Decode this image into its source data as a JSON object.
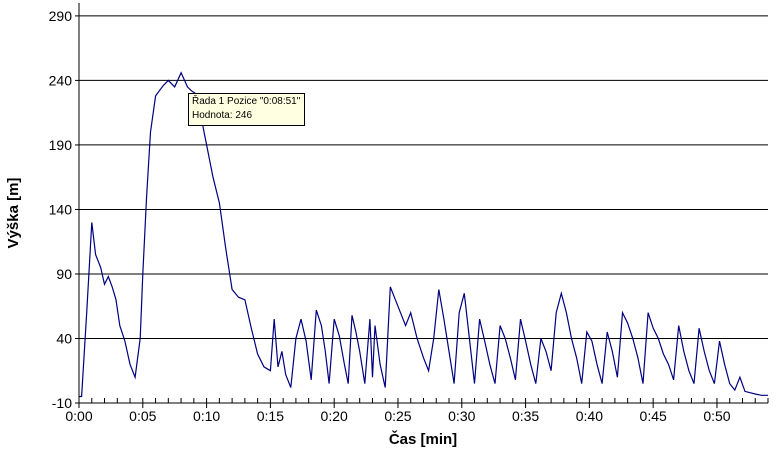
{
  "chart_data": {
    "type": "line",
    "xlabel": "Čas [min]",
    "ylabel": "Výška [m]",
    "xlim": [
      0,
      54
    ],
    "ylim": [
      -10,
      300
    ],
    "y_ticks": [
      "-10",
      "40",
      "90",
      "140",
      "190",
      "240",
      "290"
    ],
    "x_ticks": [
      "0:00",
      "0:05",
      "0:10",
      "0:15",
      "0:20",
      "0:25",
      "0:30",
      "0:35",
      "0:40",
      "0:45",
      "0:50"
    ],
    "grid": "horizontal",
    "line_color": "#000080",
    "series": [
      {
        "x": [
          0.0,
          0.2,
          0.6,
          1.0,
          1.3,
          1.7,
          2.0,
          2.3,
          2.6,
          2.9,
          3.2,
          3.6,
          4.0,
          4.4,
          4.8,
          5.0,
          5.3,
          5.6,
          6.0,
          6.3,
          6.6,
          7.0,
          7.5,
          8.0,
          8.5,
          8.8,
          9.1,
          9.5,
          10.0,
          10.5,
          11.0,
          11.5,
          12.0,
          12.5,
          13.0,
          13.5,
          14.0,
          14.5,
          15.0,
          15.3,
          15.6,
          15.9,
          16.2,
          16.6,
          17.0,
          17.4,
          17.8,
          18.2,
          18.6,
          19.0,
          19.3,
          19.6,
          20.0,
          20.4,
          20.8,
          21.1,
          21.4,
          21.7,
          22.0,
          22.4,
          22.8,
          23.0,
          23.2,
          23.6,
          24.0,
          24.4,
          24.8,
          25.2,
          25.6,
          26.0,
          26.5,
          27.0,
          27.4,
          27.8,
          28.2,
          28.6,
          29.0,
          29.4,
          29.8,
          30.2,
          30.6,
          31.0,
          31.4,
          31.8,
          32.2,
          32.6,
          33.0,
          33.4,
          33.8,
          34.2,
          34.6,
          35.0,
          35.4,
          35.8,
          36.2,
          36.6,
          37.0,
          37.4,
          37.8,
          38.2,
          38.6,
          39.0,
          39.4,
          39.8,
          40.2,
          40.6,
          41.0,
          41.4,
          41.8,
          42.2,
          42.6,
          43.0,
          43.4,
          43.8,
          44.2,
          44.6,
          45.0,
          45.4,
          45.8,
          46.2,
          46.6,
          47.0,
          47.4,
          47.8,
          48.2,
          48.6,
          49.0,
          49.4,
          49.8,
          50.2,
          50.6,
          51.0,
          51.4,
          51.8,
          52.2,
          52.6,
          53.0,
          53.5,
          54.0
        ],
        "y": [
          -5,
          -5,
          60,
          130,
          105,
          95,
          82,
          88,
          80,
          70,
          50,
          38,
          20,
          10,
          40,
          90,
          150,
          200,
          228,
          232,
          236,
          240,
          235,
          246,
          235,
          232,
          230,
          215,
          190,
          165,
          145,
          110,
          78,
          72,
          70,
          48,
          28,
          18,
          15,
          55,
          18,
          30,
          12,
          2,
          40,
          55,
          38,
          8,
          62,
          50,
          30,
          5,
          55,
          42,
          20,
          5,
          58,
          45,
          30,
          5,
          55,
          10,
          50,
          20,
          2,
          80,
          70,
          60,
          50,
          60,
          40,
          25,
          15,
          40,
          78,
          55,
          30,
          5,
          60,
          75,
          40,
          5,
          55,
          38,
          20,
          5,
          50,
          40,
          25,
          8,
          55,
          38,
          20,
          5,
          40,
          30,
          15,
          60,
          75,
          60,
          40,
          25,
          5,
          45,
          38,
          20,
          5,
          45,
          30,
          10,
          60,
          52,
          40,
          25,
          5,
          60,
          48,
          40,
          28,
          20,
          8,
          50,
          30,
          15,
          5,
          48,
          30,
          15,
          5,
          38,
          20,
          5,
          0,
          10,
          -1,
          -2,
          -3,
          -4,
          -4
        ]
      }
    ],
    "tooltip": {
      "line1": "Řada 1 Pozice \"0:08:51\"",
      "line2": "Hodnota: 246"
    }
  }
}
